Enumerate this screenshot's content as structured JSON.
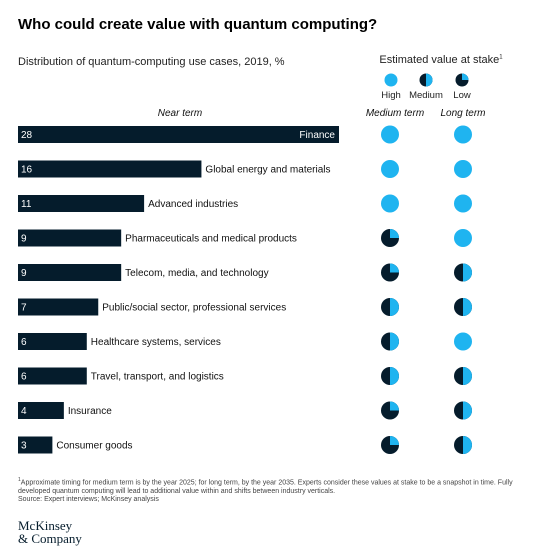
{
  "title": "Who could create value with quantum computing?",
  "subtitle": "Distribution of quantum-computing use cases, 2019, %",
  "legend": {
    "title": "Estimated value at stake",
    "marker": "1",
    "levels": [
      {
        "label": "High",
        "fill": 1.0
      },
      {
        "label": "Medium",
        "fill": 0.5
      },
      {
        "label": "Low",
        "fill": 0.25
      }
    ]
  },
  "columns": {
    "near_term": "Near term",
    "medium_term": "Medium term",
    "long_term": "Long term"
  },
  "colors": {
    "bar": "#051c2c",
    "high": "#1fb4f0",
    "dark": "#051c2c",
    "bar_text": "#ffffff"
  },
  "chart_data": {
    "type": "bar",
    "orientation": "horizontal",
    "categories": [
      "Finance",
      "Global energy and materials",
      "Advanced industries",
      "Pharmaceuticals and medical products",
      "Telecom, media, and technology",
      "Public/social sector, professional services",
      "Healthcare systems, services",
      "Travel, transport, and logistics",
      "Insurance",
      "Consumer goods"
    ],
    "values": [
      28,
      16,
      11,
      9,
      9,
      7,
      6,
      6,
      4,
      3
    ],
    "xlim": [
      0,
      28
    ],
    "medium_term": [
      "High",
      "High",
      "High",
      "Low",
      "Low",
      "Medium",
      "Medium",
      "Medium",
      "Low",
      "Low"
    ],
    "long_term": [
      "High",
      "High",
      "High",
      "High",
      "Medium",
      "Medium",
      "High",
      "Medium",
      "Medium",
      "Medium"
    ]
  },
  "footnote": {
    "marker": "1",
    "text": "Approximate timing for medium term is by the year 2025; for long term, by the year 2035. Experts consider these values at stake to be a snapshot in time. Fully developed quantum computing will lead to additional value within and shifts between industry verticals.",
    "source": "Source: Expert interviews; McKinsey analysis"
  },
  "brand": {
    "line1": "McKinsey",
    "line2": "& Company"
  }
}
